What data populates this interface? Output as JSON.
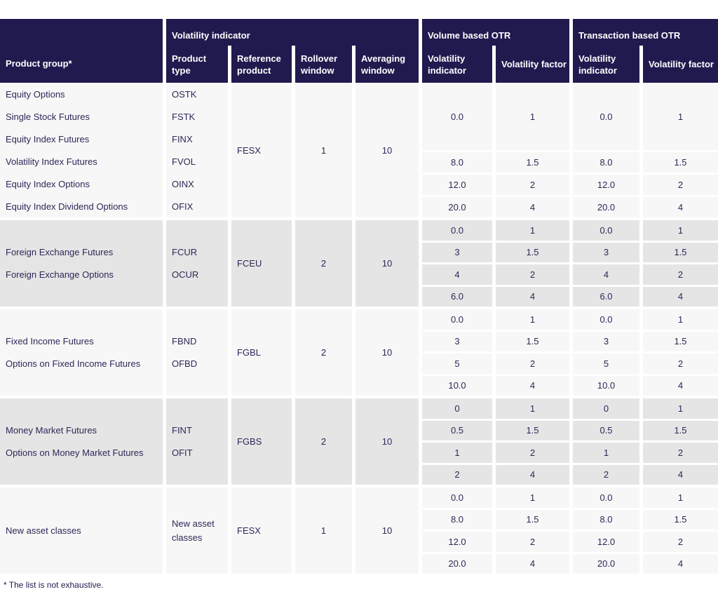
{
  "colors": {
    "header_bg": "#211a4f",
    "header_text": "#ffffff",
    "body_text": "#2d2757",
    "row_light": "#f7f7f7",
    "row_gray": "#e5e5e5"
  },
  "table": {
    "header": {
      "product_group": "Product group*",
      "groups": [
        {
          "label": "Volatility indicator",
          "columns": [
            "Product type",
            "Reference product",
            "Rollover window",
            "Averaging window"
          ]
        },
        {
          "label": "Volume based OTR",
          "columns": [
            "Volatility indicator",
            "Volatility factor"
          ]
        },
        {
          "label": "Transaction based OTR",
          "columns": [
            "Volatility indicator",
            "Volatility factor"
          ]
        }
      ]
    },
    "sections": [
      {
        "products": [
          "Equity Options",
          "Single Stock Futures",
          "Equity Index Futures",
          "Volatility Index Futures",
          "Equity Index Options",
          "Equity Index Dividend Options"
        ],
        "product_types": [
          "OSTK",
          "FSTK",
          "FINX",
          "FVOL",
          "OINX",
          "OFIX"
        ],
        "reference_product": "FESX",
        "rollover_window": "1",
        "averaging_window": "10",
        "otr_rows": [
          [
            "0.0",
            "1",
            "0.0",
            "1"
          ],
          [
            "8.0",
            "1.5",
            "8.0",
            "1.5"
          ],
          [
            "12.0",
            "2",
            "12.0",
            "2"
          ],
          [
            "20.0",
            "4",
            "20.0",
            "4"
          ]
        ]
      },
      {
        "products": [
          "Foreign Exchange Futures",
          "Foreign Exchange Options"
        ],
        "product_types": [
          "FCUR",
          "OCUR"
        ],
        "reference_product": "FCEU",
        "rollover_window": "2",
        "averaging_window": "10",
        "otr_rows": [
          [
            "0.0",
            "1",
            "0.0",
            "1"
          ],
          [
            "3",
            "1.5",
            "3",
            "1.5"
          ],
          [
            "4",
            "2",
            "4",
            "2"
          ],
          [
            "6.0",
            "4",
            "6.0",
            "4"
          ]
        ]
      },
      {
        "products": [
          "Fixed Income Futures",
          "Options on Fixed Income Futures"
        ],
        "product_types": [
          "FBND",
          "OFBD"
        ],
        "reference_product": "FGBL",
        "rollover_window": "2",
        "averaging_window": "10",
        "otr_rows": [
          [
            "0.0",
            "1",
            "0.0",
            "1"
          ],
          [
            "3",
            "1.5",
            "3",
            "1.5"
          ],
          [
            "5",
            "2",
            "5",
            "2"
          ],
          [
            "10.0",
            "4",
            "10.0",
            "4"
          ]
        ]
      },
      {
        "products": [
          "Money Market Futures",
          "Options on Money Market Futures"
        ],
        "product_types": [
          "FINT",
          "OFIT"
        ],
        "reference_product": "FGBS",
        "rollover_window": "2",
        "averaging_window": "10",
        "otr_rows": [
          [
            "0",
            "1",
            "0",
            "1"
          ],
          [
            "0.5",
            "1.5",
            "0.5",
            "1.5"
          ],
          [
            "1",
            "2",
            "1",
            "2"
          ],
          [
            "2",
            "4",
            "2",
            "4"
          ]
        ]
      },
      {
        "products": [
          "New asset classes"
        ],
        "product_types": [
          "New asset classes"
        ],
        "reference_product": "FESX",
        "rollover_window": "1",
        "averaging_window": "10",
        "otr_rows": [
          [
            "0.0",
            "1",
            "0.0",
            "1"
          ],
          [
            "8.0",
            "1.5",
            "8.0",
            "1.5"
          ],
          [
            "12.0",
            "2",
            "12.0",
            "2"
          ],
          [
            "20.0",
            "4",
            "20.0",
            "4"
          ]
        ]
      }
    ],
    "footnote": "* The list is not exhaustive."
  }
}
